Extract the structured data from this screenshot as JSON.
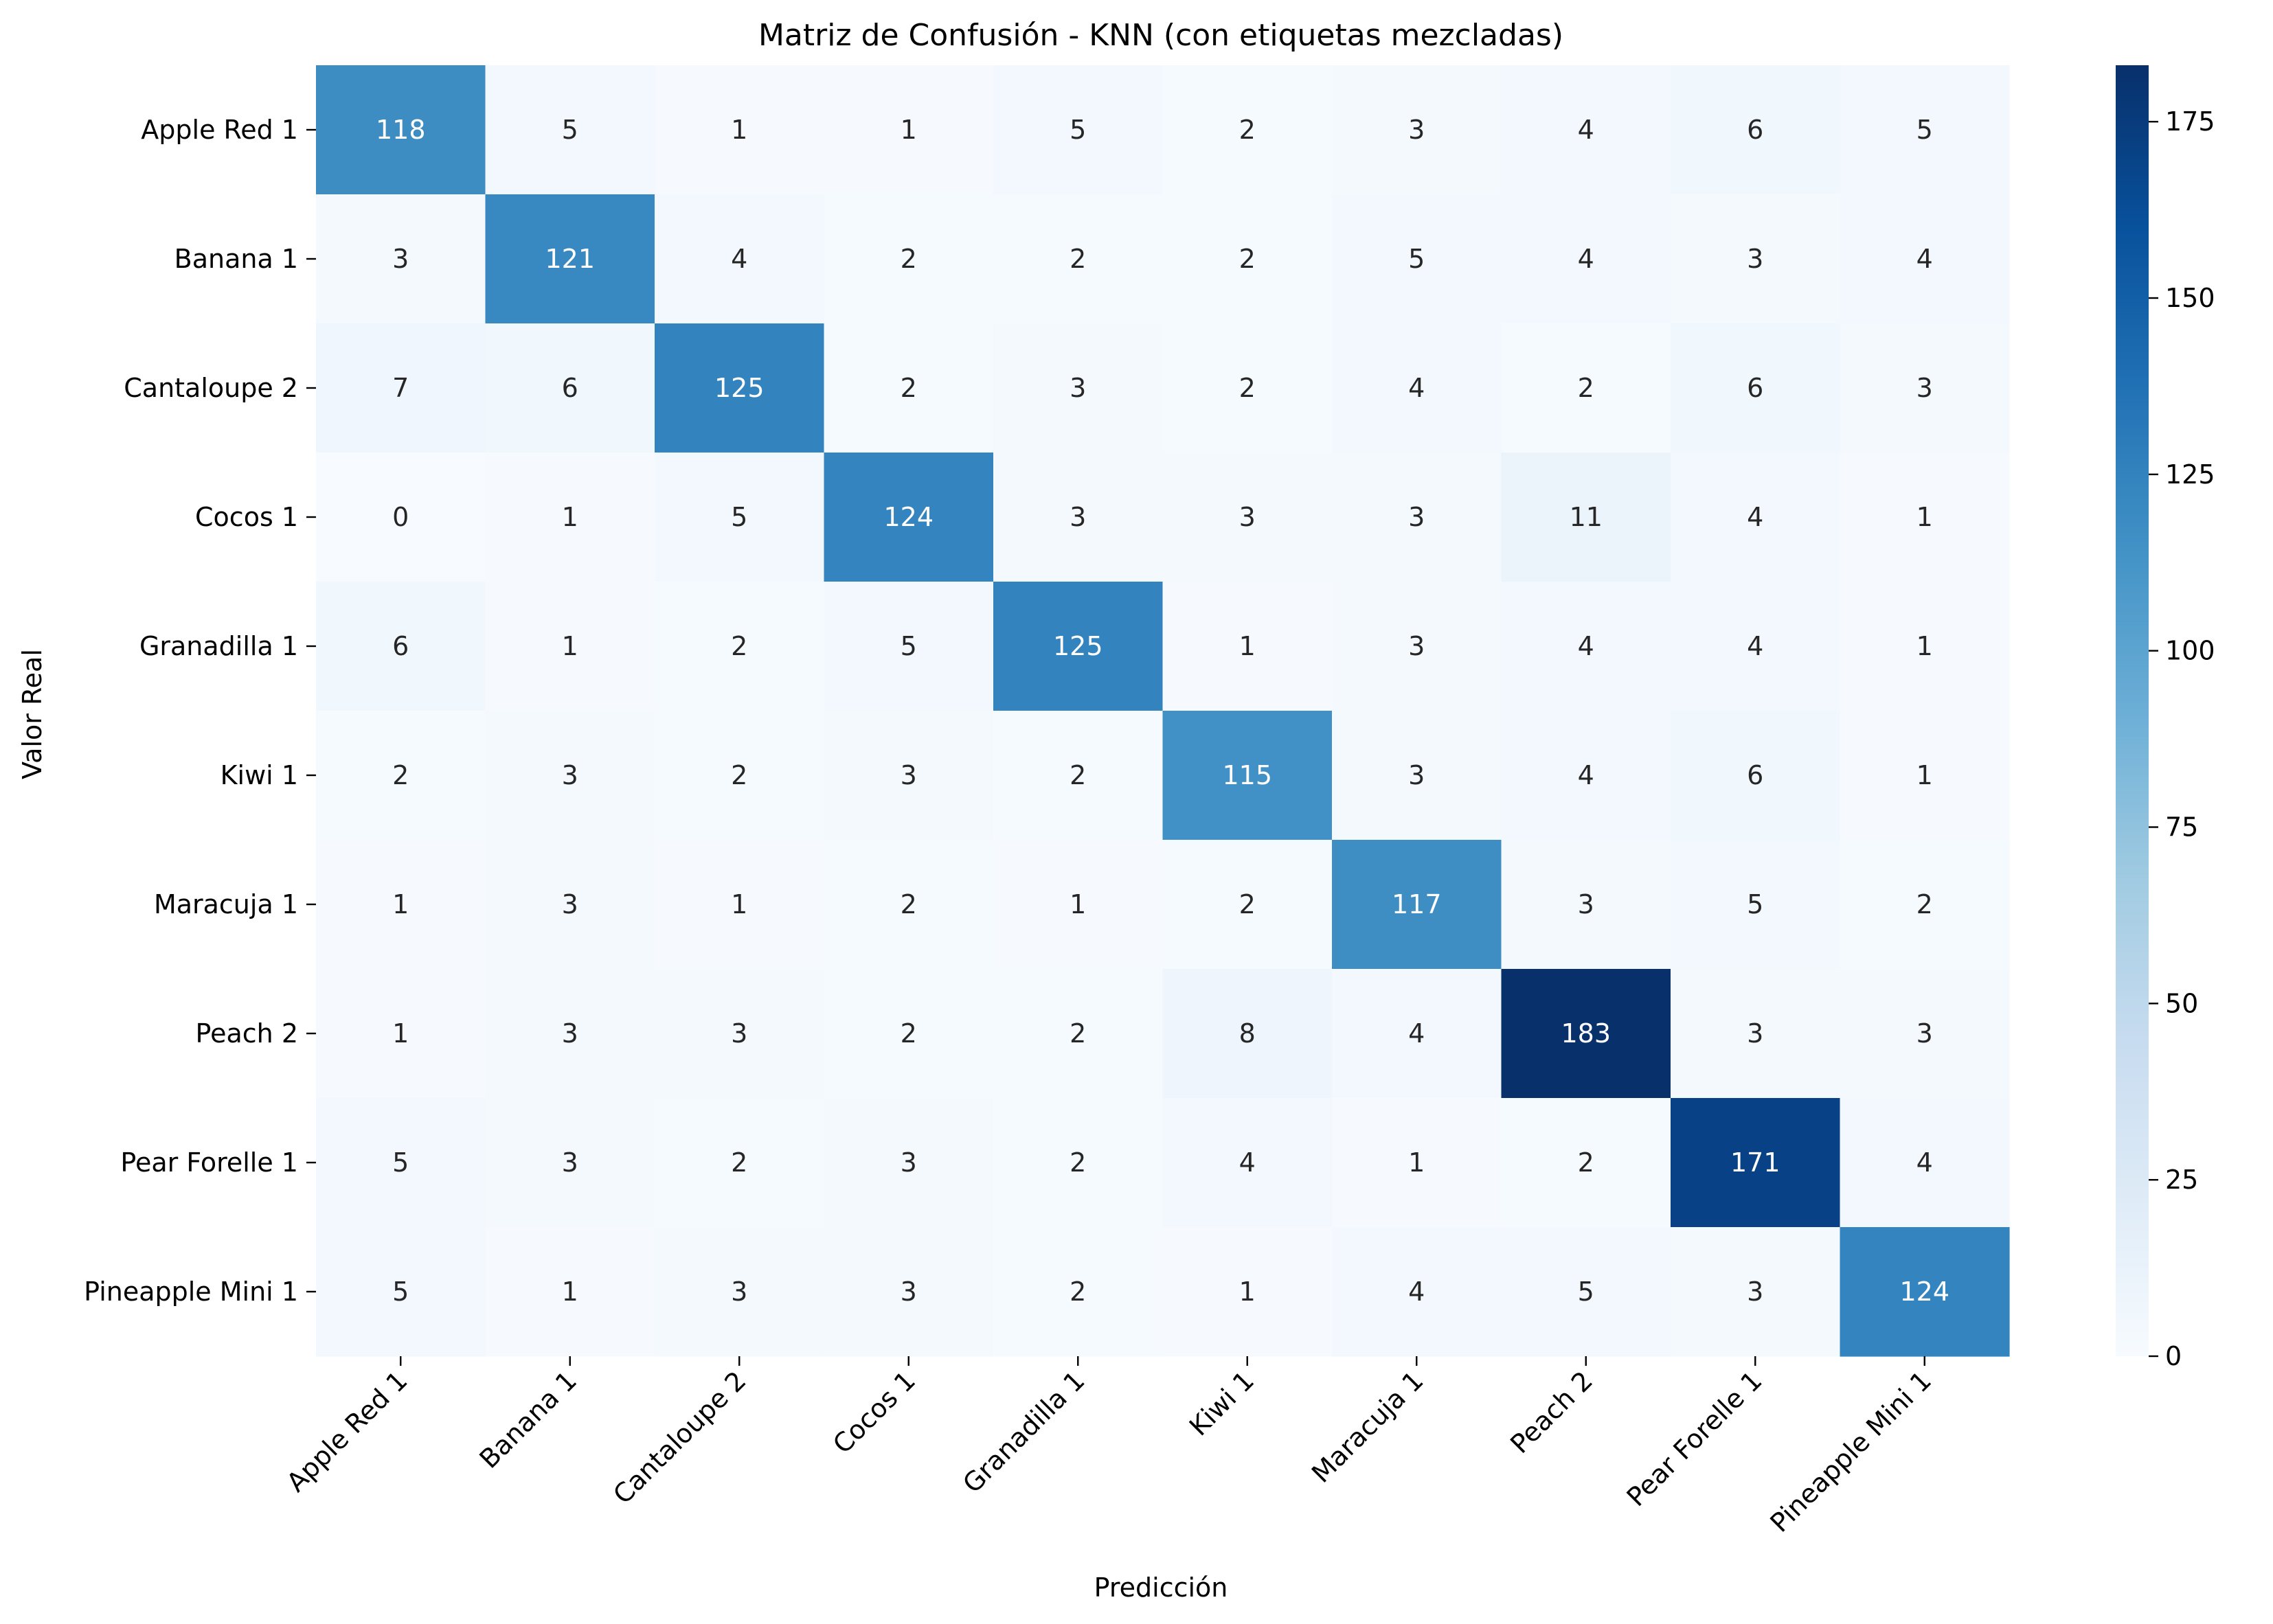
{
  "chart_data": {
    "type": "heatmap",
    "title": "Matriz de Confusión - KNN (con etiquetas mezcladas)",
    "xlabel": "Predicción",
    "ylabel": "Valor Real",
    "row_labels": [
      "Apple Red 1",
      "Banana 1",
      "Cantaloupe 2",
      "Cocos 1",
      "Granadilla 1",
      "Kiwi 1",
      "Maracuja 1",
      "Peach 2",
      "Pear Forelle 1",
      "Pineapple Mini 1"
    ],
    "col_labels": [
      "Apple Red 1",
      "Banana 1",
      "Cantaloupe 2",
      "Cocos 1",
      "Granadilla 1",
      "Kiwi 1",
      "Maracuja 1",
      "Peach 2",
      "Pear Forelle 1",
      "Pineapple Mini 1"
    ],
    "values": [
      [
        118,
        5,
        1,
        1,
        5,
        2,
        3,
        4,
        6,
        5
      ],
      [
        3,
        121,
        4,
        2,
        2,
        2,
        5,
        4,
        3,
        4
      ],
      [
        7,
        6,
        125,
        2,
        3,
        2,
        4,
        2,
        6,
        3
      ],
      [
        0,
        1,
        5,
        124,
        3,
        3,
        3,
        11,
        4,
        1
      ],
      [
        6,
        1,
        2,
        5,
        125,
        1,
        3,
        4,
        4,
        1
      ],
      [
        2,
        3,
        2,
        3,
        2,
        115,
        3,
        4,
        6,
        1
      ],
      [
        1,
        3,
        1,
        2,
        1,
        2,
        117,
        3,
        5,
        2
      ],
      [
        1,
        3,
        3,
        2,
        2,
        8,
        4,
        183,
        3,
        3
      ],
      [
        5,
        3,
        2,
        3,
        2,
        4,
        1,
        2,
        171,
        4
      ],
      [
        5,
        1,
        3,
        3,
        2,
        1,
        4,
        5,
        3,
        124
      ]
    ],
    "vmin": 0,
    "vmax": 183,
    "colormap": "Blues",
    "colorbar_ticks": [
      0,
      25,
      50,
      75,
      100,
      125,
      150,
      175
    ]
  }
}
